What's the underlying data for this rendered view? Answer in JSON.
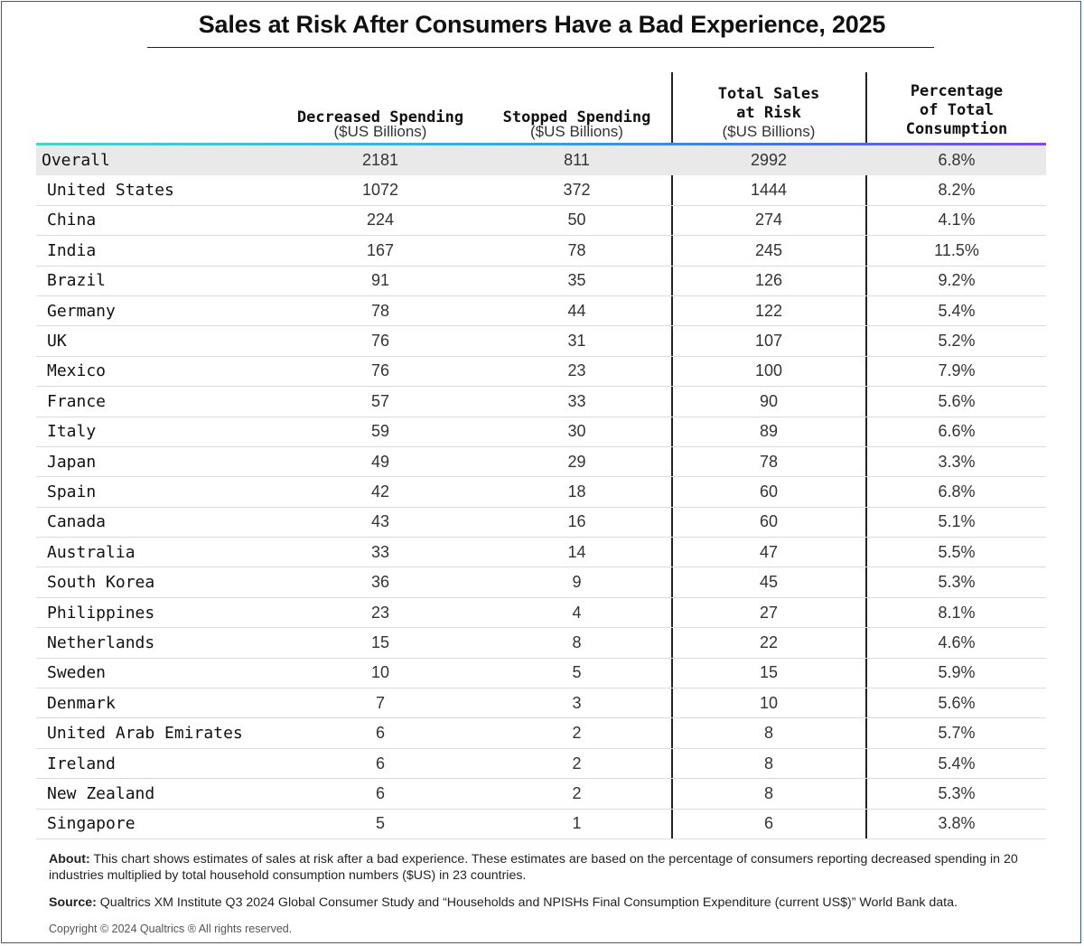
{
  "title": "Sales at Risk After Consumers Have a Bad Experience, 2025",
  "headers": {
    "decreased": {
      "main": "Decreased Spending",
      "sub": "($US Billions)"
    },
    "stopped": {
      "main": "Stopped Spending",
      "sub": "($US Billions)"
    },
    "total": {
      "main": "Total Sales\nat Risk",
      "sub": "($US Billions)"
    },
    "percentage": {
      "main": "Percentage\nof Total\nConsumption"
    }
  },
  "colors": {
    "gradient_start": "#4fd1c5",
    "gradient_end": "#7b4fe0",
    "overall_row_bg": "#e9e9e9",
    "frame_border": "#3a5a8c"
  },
  "chart_data": {
    "type": "table",
    "title": "Sales at Risk After Consumers Have a Bad Experience, 2025",
    "columns": [
      "",
      "Decreased Spending ($US Billions)",
      "Stopped Spending ($US Billions)",
      "Total Sales at Risk ($US Billions)",
      "Percentage of Total Consumption"
    ],
    "rows": [
      {
        "country": "Overall",
        "decreased": "2181",
        "stopped": "811",
        "total": "2992",
        "pct": "6.8%"
      },
      {
        "country": "United States",
        "decreased": "1072",
        "stopped": "372",
        "total": "1444",
        "pct": "8.2%"
      },
      {
        "country": "China",
        "decreased": "224",
        "stopped": "50",
        "total": "274",
        "pct": "4.1%"
      },
      {
        "country": "India",
        "decreased": "167",
        "stopped": "78",
        "total": "245",
        "pct": "11.5%"
      },
      {
        "country": "Brazil",
        "decreased": "91",
        "stopped": "35",
        "total": "126",
        "pct": "9.2%"
      },
      {
        "country": "Germany",
        "decreased": "78",
        "stopped": "44",
        "total": "122",
        "pct": "5.4%"
      },
      {
        "country": "UK",
        "decreased": "76",
        "stopped": "31",
        "total": "107",
        "pct": "5.2%"
      },
      {
        "country": "Mexico",
        "decreased": "76",
        "stopped": "23",
        "total": "100",
        "pct": "7.9%"
      },
      {
        "country": "France",
        "decreased": "57",
        "stopped": "33",
        "total": "90",
        "pct": "5.6%"
      },
      {
        "country": "Italy",
        "decreased": "59",
        "stopped": "30",
        "total": "89",
        "pct": "6.6%"
      },
      {
        "country": "Japan",
        "decreased": "49",
        "stopped": "29",
        "total": "78",
        "pct": "3.3%"
      },
      {
        "country": "Spain",
        "decreased": "42",
        "stopped": "18",
        "total": "60",
        "pct": "6.8%"
      },
      {
        "country": "Canada",
        "decreased": "43",
        "stopped": "16",
        "total": "60",
        "pct": "5.1%"
      },
      {
        "country": "Australia",
        "decreased": "33",
        "stopped": "14",
        "total": "47",
        "pct": "5.5%"
      },
      {
        "country": "South Korea",
        "decreased": "36",
        "stopped": "9",
        "total": "45",
        "pct": "5.3%"
      },
      {
        "country": "Philippines",
        "decreased": "23",
        "stopped": "4",
        "total": "27",
        "pct": "8.1%"
      },
      {
        "country": "Netherlands",
        "decreased": "15",
        "stopped": "8",
        "total": "22",
        "pct": "4.6%"
      },
      {
        "country": "Sweden",
        "decreased": "10",
        "stopped": "5",
        "total": "15",
        "pct": "5.9%"
      },
      {
        "country": "Denmark",
        "decreased": "7",
        "stopped": "3",
        "total": "10",
        "pct": "5.6%"
      },
      {
        "country": "United Arab Emirates",
        "decreased": "6",
        "stopped": "2",
        "total": "8",
        "pct": "5.7%"
      },
      {
        "country": "Ireland",
        "decreased": "6",
        "stopped": "2",
        "total": "8",
        "pct": "5.4%"
      },
      {
        "country": "New Zealand",
        "decreased": "6",
        "stopped": "2",
        "total": "8",
        "pct": "5.3%"
      },
      {
        "country": "Singapore",
        "decreased": "5",
        "stopped": "1",
        "total": "6",
        "pct": "3.8%"
      }
    ]
  },
  "notes": {
    "about_label": "About:",
    "about_text": " This chart shows estimates of sales at risk after a bad experience. These estimates are based on the percentage of consumers reporting decreased spending in 20 industries multiplied by total household consumption numbers ($US) in 23 countries.",
    "source_label": "Source:",
    "source_text": " Qualtrics XM Institute Q3 2024 Global Consumer Study and “Households and NPISHs Final Consumption Expenditure (current US$)” World Bank data.",
    "copyright": "Copyright © 2024 Qualtrics ® All rights reserved."
  }
}
